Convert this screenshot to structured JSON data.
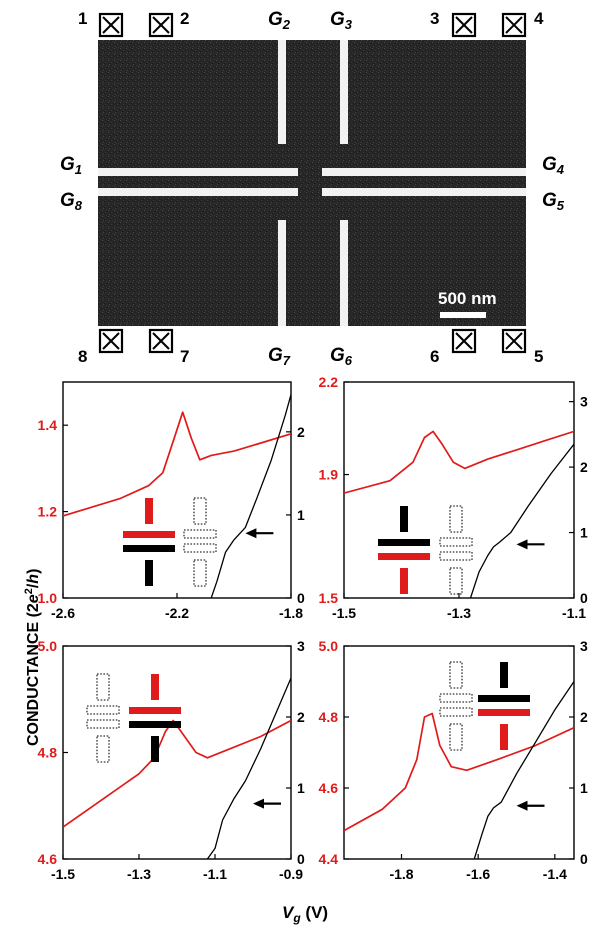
{
  "micrograph": {
    "terminals_top": [
      "1",
      "2",
      "3",
      "4"
    ],
    "terminals_bottom": [
      "8",
      "7",
      "6",
      "5"
    ],
    "gates": {
      "g1": {
        "base": "G",
        "sub": "1"
      },
      "g2": {
        "base": "G",
        "sub": "2"
      },
      "g3": {
        "base": "G",
        "sub": "3"
      },
      "g4": {
        "base": "G",
        "sub": "4"
      },
      "g5": {
        "base": "G",
        "sub": "5"
      },
      "g6": {
        "base": "G",
        "sub": "6"
      },
      "g7": {
        "base": "G",
        "sub": "7"
      },
      "g8": {
        "base": "G",
        "sub": "8"
      }
    },
    "scale_bar": "500 nm"
  },
  "axis_text": {
    "ylabel_pre": "CONDUCTANCE (2",
    "ylabel_e": "e",
    "ylabel_sup": "2",
    "ylabel_slash": "/",
    "ylabel_h": "h",
    "ylabel_post": ")",
    "xlabel_v": "V",
    "xlabel_sub": "g",
    "xlabel_unit": " (V)"
  },
  "colors": {
    "red": "#e01b1b",
    "black": "#000000"
  },
  "chart_data": [
    {
      "type": "line",
      "panel": "top-left",
      "xlim": [
        -2.6,
        -1.8
      ],
      "xticks": [
        "-2.6",
        "-2.2",
        "-1.8"
      ],
      "ylim_left": [
        1.0,
        1.5
      ],
      "yticks_left": [
        "1.0",
        "1.2",
        "1.4"
      ],
      "ylim_right": [
        0,
        2.6
      ],
      "yticks_right": [
        "0",
        "1",
        "2"
      ],
      "series": [
        {
          "axis": "left",
          "color": "red",
          "x": [
            -2.6,
            -2.4,
            -2.3,
            -2.25,
            -2.21,
            -2.18,
            -2.15,
            -2.12,
            -2.08,
            -2.0,
            -1.9,
            -1.8
          ],
          "y": [
            1.19,
            1.23,
            1.26,
            1.29,
            1.37,
            1.43,
            1.37,
            1.32,
            1.33,
            1.34,
            1.36,
            1.38
          ]
        },
        {
          "axis": "right",
          "color": "black",
          "x": [
            -2.08,
            -2.06,
            -2.03,
            -2.0,
            -1.96,
            -1.92,
            -1.87,
            -1.82,
            -1.8
          ],
          "y": [
            0,
            0.2,
            0.55,
            0.7,
            0.85,
            1.2,
            1.65,
            2.2,
            2.45
          ]
        }
      ],
      "arrow": {
        "x": -1.96,
        "y_right": 0.78
      },
      "insets": [
        {
          "position": "left",
          "vertical_top": "red",
          "horizontal_top": "red",
          "horizontal_bottom": "black",
          "vertical_bottom": "black"
        },
        {
          "position": "right",
          "style": "dotted"
        }
      ]
    },
    {
      "type": "line",
      "panel": "top-right",
      "xlim": [
        -1.5,
        -1.1
      ],
      "xticks": [
        "-1.5",
        "-1.3",
        "-1.1"
      ],
      "ylim_left": [
        1.5,
        2.2
      ],
      "yticks_left": [
        "1.5",
        "1.9",
        "2.2"
      ],
      "ylim_right": [
        0,
        3.3
      ],
      "yticks_right": [
        "0",
        "1",
        "2",
        "3"
      ],
      "series": [
        {
          "axis": "left",
          "color": "red",
          "x": [
            -1.5,
            -1.42,
            -1.38,
            -1.36,
            -1.345,
            -1.33,
            -1.31,
            -1.29,
            -1.25,
            -1.2,
            -1.15,
            -1.1
          ],
          "y": [
            1.84,
            1.88,
            1.94,
            2.02,
            2.04,
            2.0,
            1.94,
            1.92,
            1.95,
            1.98,
            2.01,
            2.04
          ]
        },
        {
          "axis": "right",
          "color": "black",
          "x": [
            -1.28,
            -1.265,
            -1.25,
            -1.24,
            -1.23,
            -1.21,
            -1.18,
            -1.14,
            -1.1
          ],
          "y": [
            0,
            0.4,
            0.65,
            0.78,
            0.85,
            1.0,
            1.4,
            1.9,
            2.35
          ]
        }
      ],
      "arrow": {
        "x": -1.2,
        "y_right": 0.82
      },
      "insets": [
        {
          "position": "left",
          "vertical_top": "black",
          "horizontal_top": "black",
          "horizontal_bottom": "red",
          "vertical_bottom": "red"
        },
        {
          "position": "right",
          "style": "dotted"
        }
      ]
    },
    {
      "type": "line",
      "panel": "bottom-left",
      "xlim": [
        -1.5,
        -0.9
      ],
      "xticks": [
        "-1.5",
        "-1.3",
        "-1.1",
        "-0.9"
      ],
      "ylim_left": [
        4.6,
        5.0
      ],
      "yticks_left": [
        "4.6",
        "4.8",
        "5.0"
      ],
      "ylim_right": [
        0,
        3
      ],
      "yticks_right": [
        "0",
        "1",
        "2",
        "3"
      ],
      "series": [
        {
          "axis": "left",
          "color": "red",
          "x": [
            -1.5,
            -1.4,
            -1.3,
            -1.26,
            -1.23,
            -1.21,
            -1.18,
            -1.15,
            -1.12,
            -1.05,
            -0.98,
            -0.9
          ],
          "y": [
            4.66,
            4.71,
            4.76,
            4.79,
            4.84,
            4.86,
            4.83,
            4.8,
            4.79,
            4.81,
            4.83,
            4.86
          ]
        },
        {
          "axis": "right",
          "color": "black",
          "x": [
            -1.12,
            -1.1,
            -1.08,
            -1.05,
            -1.02,
            -0.98,
            -0.94,
            -0.9
          ],
          "y": [
            0,
            0.15,
            0.55,
            0.85,
            1.1,
            1.55,
            2.05,
            2.55
          ]
        }
      ],
      "arrow": {
        "x": -1.0,
        "y_right": 0.78
      },
      "insets": [
        {
          "position": "left",
          "style": "dotted"
        },
        {
          "position": "right",
          "vertical_top": "red",
          "horizontal_top": "red",
          "horizontal_bottom": "black",
          "vertical_bottom": "black"
        }
      ]
    },
    {
      "type": "line",
      "panel": "bottom-right",
      "xlim": [
        -1.95,
        -1.35
      ],
      "xticks": [
        "-1.8",
        "-1.6",
        "-1.4"
      ],
      "ylim_left": [
        4.4,
        5.0
      ],
      "yticks_left": [
        "4.4",
        "4.6",
        "4.8",
        "5.0"
      ],
      "ylim_right": [
        0,
        3
      ],
      "yticks_right": [
        "0",
        "1",
        "2",
        "3"
      ],
      "series": [
        {
          "axis": "left",
          "color": "red",
          "x": [
            -1.95,
            -1.85,
            -1.79,
            -1.76,
            -1.74,
            -1.72,
            -1.7,
            -1.67,
            -1.63,
            -1.55,
            -1.45,
            -1.35
          ],
          "y": [
            4.48,
            4.54,
            4.6,
            4.68,
            4.8,
            4.81,
            4.72,
            4.66,
            4.65,
            4.68,
            4.72,
            4.77
          ]
        },
        {
          "axis": "right",
          "color": "black",
          "x": [
            -1.61,
            -1.59,
            -1.575,
            -1.56,
            -1.54,
            -1.5,
            -1.45,
            -1.4,
            -1.35
          ],
          "y": [
            0,
            0.35,
            0.6,
            0.72,
            0.8,
            1.2,
            1.65,
            2.1,
            2.5
          ]
        }
      ],
      "arrow": {
        "x": -1.5,
        "y_right": 0.75
      },
      "insets": [
        {
          "position": "left",
          "style": "dotted"
        },
        {
          "position": "right",
          "vertical_top": "black",
          "horizontal_top": "black",
          "horizontal_bottom": "red",
          "vertical_bottom": "red"
        }
      ]
    }
  ]
}
